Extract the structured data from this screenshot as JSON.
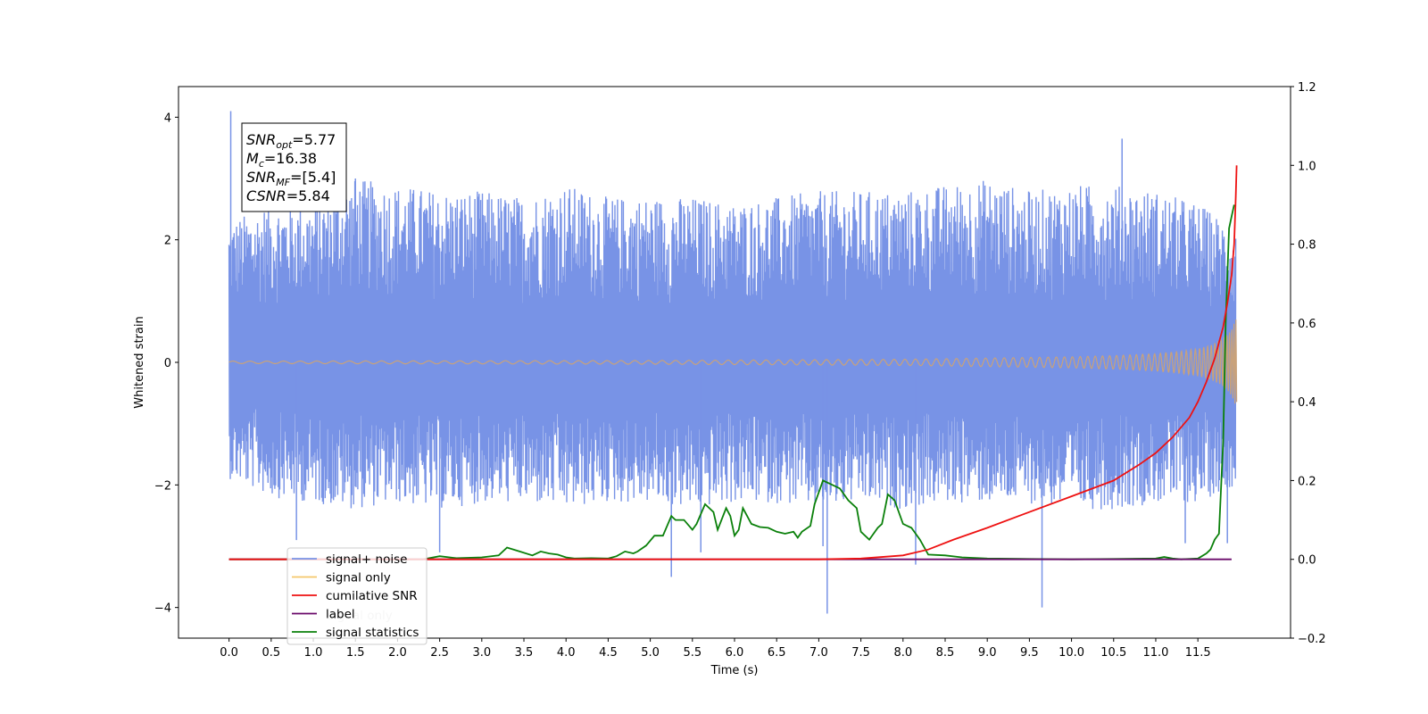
{
  "chart_data": {
    "type": "line",
    "xlabel": "Time (s)",
    "ylabel": "Whitened strain",
    "xlim": [
      -0.6,
      12.6
    ],
    "ylim": [
      -4.5,
      4.5
    ],
    "y2lim": [
      -0.2,
      1.2
    ],
    "x_ticks": [
      0.0,
      0.5,
      1.0,
      1.5,
      2.0,
      2.5,
      3.0,
      3.5,
      4.0,
      4.5,
      5.0,
      5.5,
      6.0,
      6.5,
      7.0,
      7.5,
      8.0,
      8.5,
      9.0,
      9.5,
      10.0,
      10.5,
      11.0,
      11.5
    ],
    "x_tick_labels": [
      "0.0",
      "0.5",
      "1.0",
      "1.5",
      "2.0",
      "2.5",
      "3.0",
      "3.5",
      "4.0",
      "4.5",
      "5.0",
      "5.5",
      "6.0",
      "6.5",
      "7.0",
      "7.5",
      "8.0",
      "8.5",
      "9.0",
      "9.5",
      "10.0",
      "10.5",
      "11.0",
      "11.5"
    ],
    "y_ticks": [
      -4,
      -2,
      0,
      2,
      4
    ],
    "y_tick_labels": [
      "−4",
      "−2",
      "0",
      "2",
      "4"
    ],
    "y2_ticks": [
      -0.2,
      0.0,
      0.2,
      0.4,
      0.6,
      0.8,
      1.0,
      1.2
    ],
    "y2_tick_labels": [
      "−0.2",
      "0.0",
      "0.2",
      "0.4",
      "0.6",
      "0.8",
      "1.0",
      "1.2"
    ],
    "grid": false,
    "legend_position": "lower-left",
    "annotation": {
      "lines": [
        {
          "main": "SNR",
          "sub": "opt",
          "rest": "=5.77"
        },
        {
          "main": "M",
          "sub": "c",
          "rest": "=16.38"
        },
        {
          "main": "SNR",
          "sub": "MF",
          "rest": "=[5.4]"
        },
        {
          "main": "CSNR",
          "sub": "",
          "rest": "=5.84"
        }
      ]
    },
    "series": [
      {
        "name": "signal+ noise",
        "axis": "left",
        "color": "#7893e6",
        "envelope": {
          "x": [
            0,
            0.5,
            1,
            1.5,
            2,
            2.5,
            3,
            3.5,
            4,
            4.5,
            5,
            5.5,
            6,
            6.5,
            7,
            7.5,
            8,
            8.5,
            9,
            9.5,
            10,
            10.5,
            11,
            11.5,
            11.95
          ],
          "upper": [
            2.3,
            2.6,
            2.6,
            3.0,
            2.9,
            2.8,
            2.8,
            2.7,
            2.9,
            2.7,
            2.7,
            2.7,
            2.6,
            2.7,
            2.8,
            2.8,
            2.8,
            2.9,
            3.0,
            2.8,
            2.9,
            2.9,
            2.8,
            2.6,
            2.2
          ],
          "lower": [
            -1.9,
            -2.2,
            -2.3,
            -2.4,
            -2.3,
            -2.4,
            -2.3,
            -2.3,
            -2.4,
            -2.3,
            -2.3,
            -2.4,
            -2.3,
            -2.3,
            -2.4,
            -2.3,
            -2.4,
            -2.3,
            -2.3,
            -2.3,
            -2.4,
            -2.4,
            -2.3,
            -2.3,
            -2.0
          ]
        },
        "spikes": [
          [
            0.02,
            4.1
          ],
          [
            0.8,
            -2.9
          ],
          [
            1.5,
            3.0
          ],
          [
            2.5,
            -3.1
          ],
          [
            5.25,
            -3.5
          ],
          [
            5.6,
            -3.1
          ],
          [
            7.1,
            -4.1
          ],
          [
            7.05,
            -3.0
          ],
          [
            8.15,
            -3.3
          ],
          [
            9.65,
            -4.0
          ],
          [
            10.6,
            3.65
          ],
          [
            11.35,
            -2.95
          ],
          [
            11.85,
            -2.95
          ]
        ]
      },
      {
        "name": "signal only",
        "axis": "left",
        "color": "#c9a27a",
        "x": [
          0,
          5,
          8,
          9,
          10,
          10.5,
          11,
          11.3,
          11.5,
          11.65,
          11.75,
          11.85,
          11.92,
          11.96
        ],
        "amplitude": [
          0.02,
          0.03,
          0.05,
          0.07,
          0.09,
          0.11,
          0.14,
          0.18,
          0.22,
          0.28,
          0.35,
          0.45,
          0.6,
          0.75
        ]
      },
      {
        "name": "cumilative SNR",
        "axis": "right",
        "color": "#ee1111",
        "x": [
          0,
          7.0,
          7.5,
          8.0,
          8.3,
          8.6,
          9.0,
          9.5,
          10.0,
          10.5,
          10.8,
          11.0,
          11.2,
          11.4,
          11.5,
          11.6,
          11.7,
          11.8,
          11.85,
          11.9,
          11.93,
          11.95,
          11.96
        ],
        "y": [
          0.0,
          0.0,
          0.002,
          0.01,
          0.025,
          0.05,
          0.08,
          0.12,
          0.16,
          0.2,
          0.24,
          0.27,
          0.31,
          0.36,
          0.4,
          0.45,
          0.51,
          0.59,
          0.65,
          0.72,
          0.8,
          0.92,
          1.0
        ]
      },
      {
        "name": "label",
        "axis": "right",
        "color": "#6a0a6a",
        "x": [
          0,
          11.9
        ],
        "y": [
          0.0,
          0.0
        ]
      },
      {
        "name": "signal statistics",
        "axis": "right",
        "color": "#0a800a",
        "x": [
          0,
          2.3,
          2.5,
          2.7,
          3.0,
          3.2,
          3.3,
          3.45,
          3.6,
          3.7,
          3.8,
          3.9,
          4.0,
          4.1,
          4.3,
          4.5,
          4.6,
          4.7,
          4.8,
          4.85,
          4.95,
          5.05,
          5.15,
          5.25,
          5.3,
          5.4,
          5.5,
          5.55,
          5.65,
          5.75,
          5.8,
          5.9,
          5.95,
          6.0,
          6.05,
          6.1,
          6.2,
          6.3,
          6.4,
          6.5,
          6.6,
          6.7,
          6.75,
          6.8,
          6.9,
          6.95,
          7.05,
          7.15,
          7.25,
          7.35,
          7.45,
          7.5,
          7.6,
          7.7,
          7.75,
          7.82,
          7.9,
          8.0,
          8.1,
          8.2,
          8.3,
          8.5,
          8.7,
          9.0,
          9.5,
          10.0,
          10.5,
          11.0,
          11.1,
          11.2,
          11.3,
          11.5,
          11.6,
          11.65,
          11.7,
          11.75,
          11.8,
          11.83,
          11.87,
          11.9,
          11.93
        ],
        "y": [
          0.0,
          0.0,
          0.008,
          0.003,
          0.005,
          0.01,
          0.03,
          0.02,
          0.01,
          0.02,
          0.015,
          0.012,
          0.005,
          0.002,
          0.003,
          0.002,
          0.008,
          0.02,
          0.015,
          0.02,
          0.035,
          0.06,
          0.06,
          0.11,
          0.1,
          0.1,
          0.075,
          0.09,
          0.14,
          0.12,
          0.075,
          0.13,
          0.11,
          0.06,
          0.075,
          0.13,
          0.09,
          0.082,
          0.08,
          0.07,
          0.065,
          0.07,
          0.055,
          0.07,
          0.085,
          0.14,
          0.2,
          0.19,
          0.18,
          0.15,
          0.13,
          0.07,
          0.05,
          0.08,
          0.09,
          0.165,
          0.15,
          0.09,
          0.08,
          0.05,
          0.012,
          0.01,
          0.005,
          0.002,
          0.001,
          0.0,
          0.001,
          0.002,
          0.006,
          0.002,
          0.0,
          0.002,
          0.015,
          0.025,
          0.05,
          0.065,
          0.3,
          0.6,
          0.84,
          0.87,
          0.9
        ]
      }
    ],
    "legend_entries": [
      "signal+ noise",
      "signal only",
      "cumilative SNR",
      "label",
      "signal statistics"
    ],
    "legend_overlapped_text": "signal only"
  }
}
